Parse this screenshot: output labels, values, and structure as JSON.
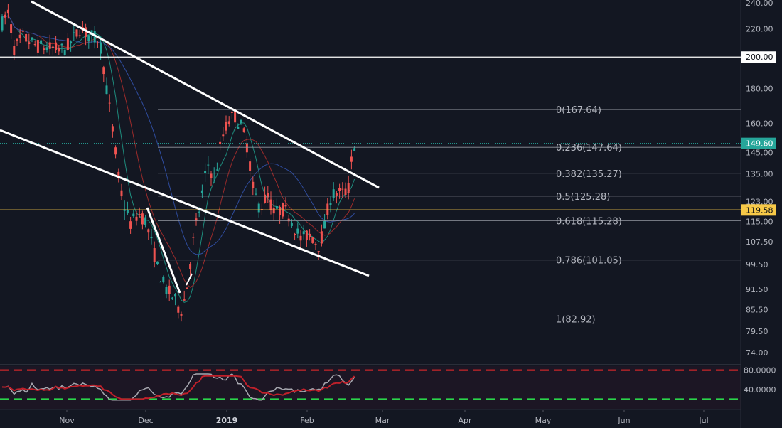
{
  "chart_data": {
    "type": "candlestick",
    "price_axis": {
      "ticks": [
        "240.00",
        "220.00",
        "200.00",
        "180.00",
        "160.00",
        "145.00",
        "135.00",
        "123.00",
        "115.00",
        "107.50",
        "99.50",
        "91.50",
        "85.50",
        "79.50",
        "74.00"
      ],
      "scale": "log"
    },
    "time_axis": {
      "ticks": [
        "Nov",
        "Dec",
        "2019",
        "Feb",
        "Mar",
        "Apr",
        "May",
        "Jun",
        "Jul"
      ]
    },
    "horizontal_lines": [
      {
        "price": 200.0,
        "label": "200.00",
        "color": "#ffffff"
      },
      {
        "price": 119.58,
        "label": "119.58",
        "color": "#f7c948"
      }
    ],
    "last_price": {
      "price": 149.6,
      "label": "149.60",
      "color": "#26a69a"
    },
    "fibonacci": [
      {
        "price": 167.64,
        "label": "0(167.64)"
      },
      {
        "price": 147.64,
        "label": "0.236(147.64)"
      },
      {
        "price": 135.27,
        "label": "0.382(135.27)"
      },
      {
        "price": 125.28,
        "label": "0.5(125.28)"
      },
      {
        "price": 115.28,
        "label": "0.618(115.28)"
      },
      {
        "price": 101.05,
        "label": "0.786(101.05)"
      },
      {
        "price": 82.92,
        "label": "1(82.92)"
      }
    ],
    "oscillator": {
      "ticks": [
        "80.0000",
        "40.0000"
      ],
      "upper_band": 80,
      "lower_band": 20
    },
    "colors": {
      "up": "#26a69a",
      "down": "#ef5350",
      "background": "#131722",
      "trendline": "#ffffff"
    }
  }
}
